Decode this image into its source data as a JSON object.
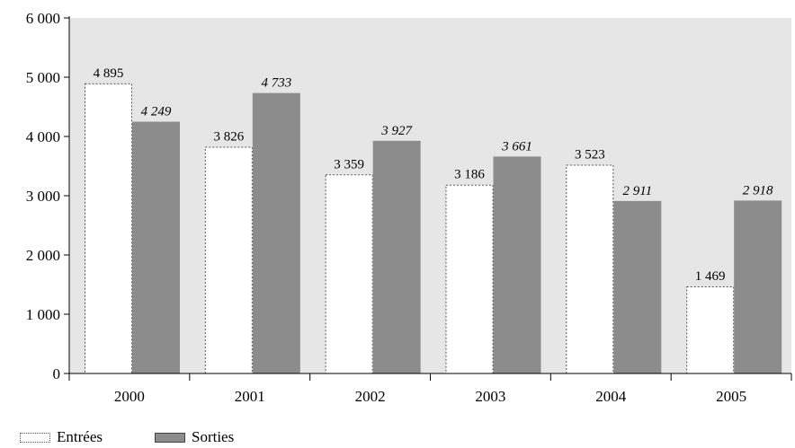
{
  "chart_data": {
    "type": "bar",
    "categories": [
      "2000",
      "2001",
      "2002",
      "2003",
      "2004",
      "2005"
    ],
    "series": [
      {
        "name": "Entrées",
        "values": [
          4895,
          3826,
          3359,
          3186,
          3523,
          1469
        ],
        "labels": [
          "4 895",
          "3 826",
          "3 359",
          "3 186",
          "3 523",
          "1 469"
        ]
      },
      {
        "name": "Sorties",
        "values": [
          4249,
          4733,
          3927,
          3661,
          2911,
          2918
        ],
        "labels": [
          "4 249",
          "4 733",
          "3 927",
          "3 661",
          "2 911",
          "2 918"
        ]
      }
    ],
    "ylim": [
      0,
      6000
    ],
    "yticks": [
      0,
      1000,
      2000,
      3000,
      4000,
      5000,
      6000
    ],
    "ytick_labels": [
      "0",
      "1 000",
      "2 000",
      "3 000",
      "4 000",
      "5 000",
      "6 000"
    ],
    "title": "",
    "xlabel": "",
    "ylabel": "",
    "grid": false,
    "legend_position": "bottom-left",
    "colors": {
      "plot_background": "#e6e6e6",
      "entrees_fill": "#ffffff",
      "entrees_border": "#555555",
      "sorties_fill": "#8c8c8c"
    }
  },
  "legend": {
    "entrees_label": "Entrées",
    "sorties_label": "Sorties"
  }
}
